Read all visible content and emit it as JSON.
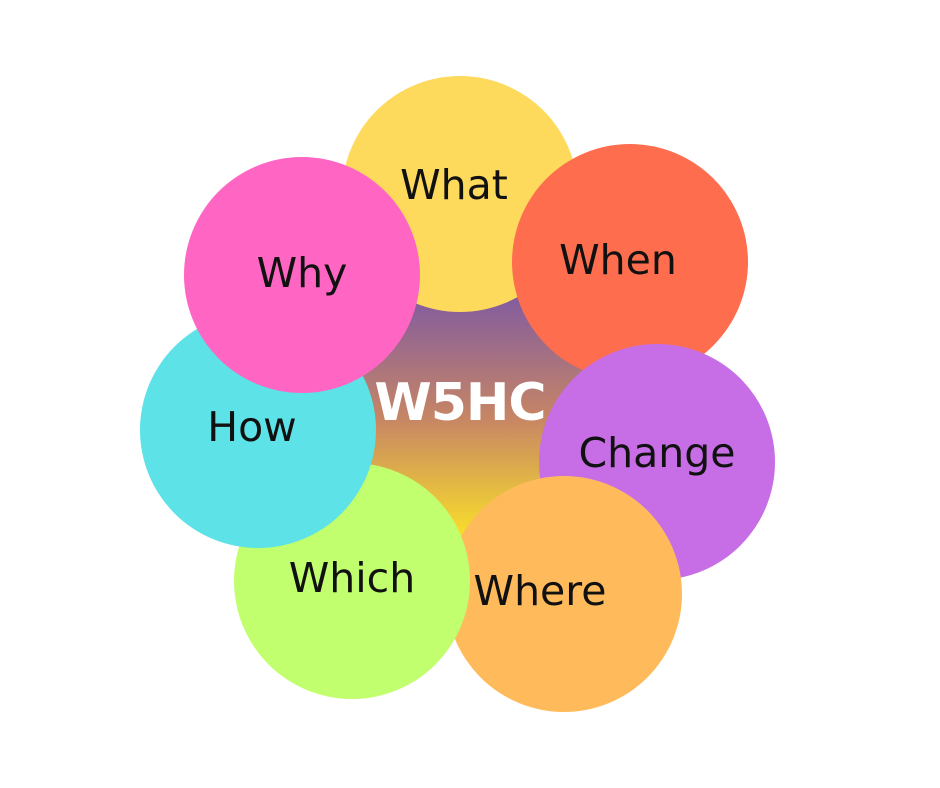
{
  "diagram": {
    "center": {
      "label": "W5HC",
      "gradient_top": "#7f5aa2",
      "gradient_bottom": "#f8dc2c"
    },
    "petals": [
      {
        "key": "what",
        "label": "What",
        "color": "#fdd95c"
      },
      {
        "key": "when",
        "label": "When",
        "color": "#fe6e4e"
      },
      {
        "key": "change",
        "label": "Change",
        "color": "#c76de6"
      },
      {
        "key": "where",
        "label": "Where",
        "color": "#ffbb5b"
      },
      {
        "key": "which",
        "label": "Which",
        "color": "#c1ff6e"
      },
      {
        "key": "how",
        "label": "How",
        "color": "#5ce2e7"
      },
      {
        "key": "why",
        "label": "Why",
        "color": "#ff66c4"
      }
    ]
  }
}
